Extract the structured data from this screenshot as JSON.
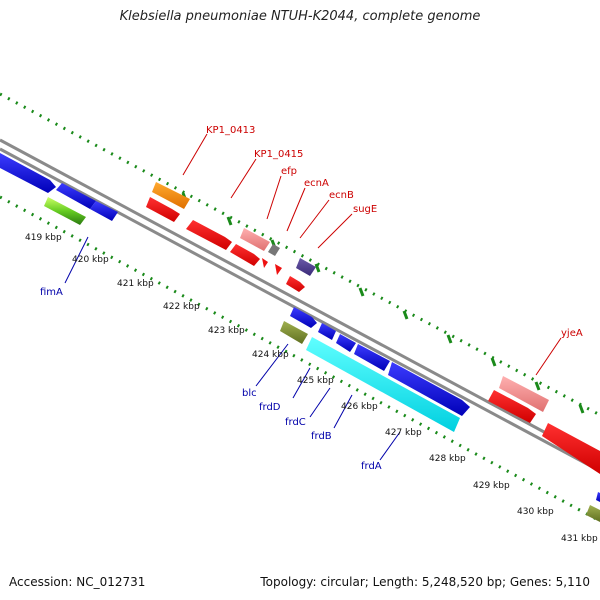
{
  "title": "Klebsiella pneumoniae NTUH-K2044, complete genome",
  "footer": {
    "accession": "Accession: NC_012731",
    "summary": "Topology: circular; Length: 5,248,520 bp; Genes: 5,110"
  },
  "colors": {
    "backbone": "#8a8a8a",
    "tick": "#1a8a1a",
    "label_top": "#cc0000",
    "label_bottom": "#0000aa",
    "kbp_label": "#111111"
  },
  "kbp_labels": [
    "419 kbp",
    "420 kbp",
    "421 kbp",
    "422 kbp",
    "423 kbp",
    "424 kbp",
    "425 kbp",
    "426 kbp",
    "427 kbp",
    "428 kbp",
    "429 kbp",
    "430 kbp",
    "431 kbp"
  ],
  "gene_labels_top": [
    "KP1_0413",
    "KP1_0415",
    "efp",
    "ecnA",
    "ecnB",
    "sugE",
    "yjeA"
  ],
  "gene_labels_bottom": [
    "fimA",
    "blc",
    "frdD",
    "frdC",
    "frdB",
    "frdA"
  ]
}
